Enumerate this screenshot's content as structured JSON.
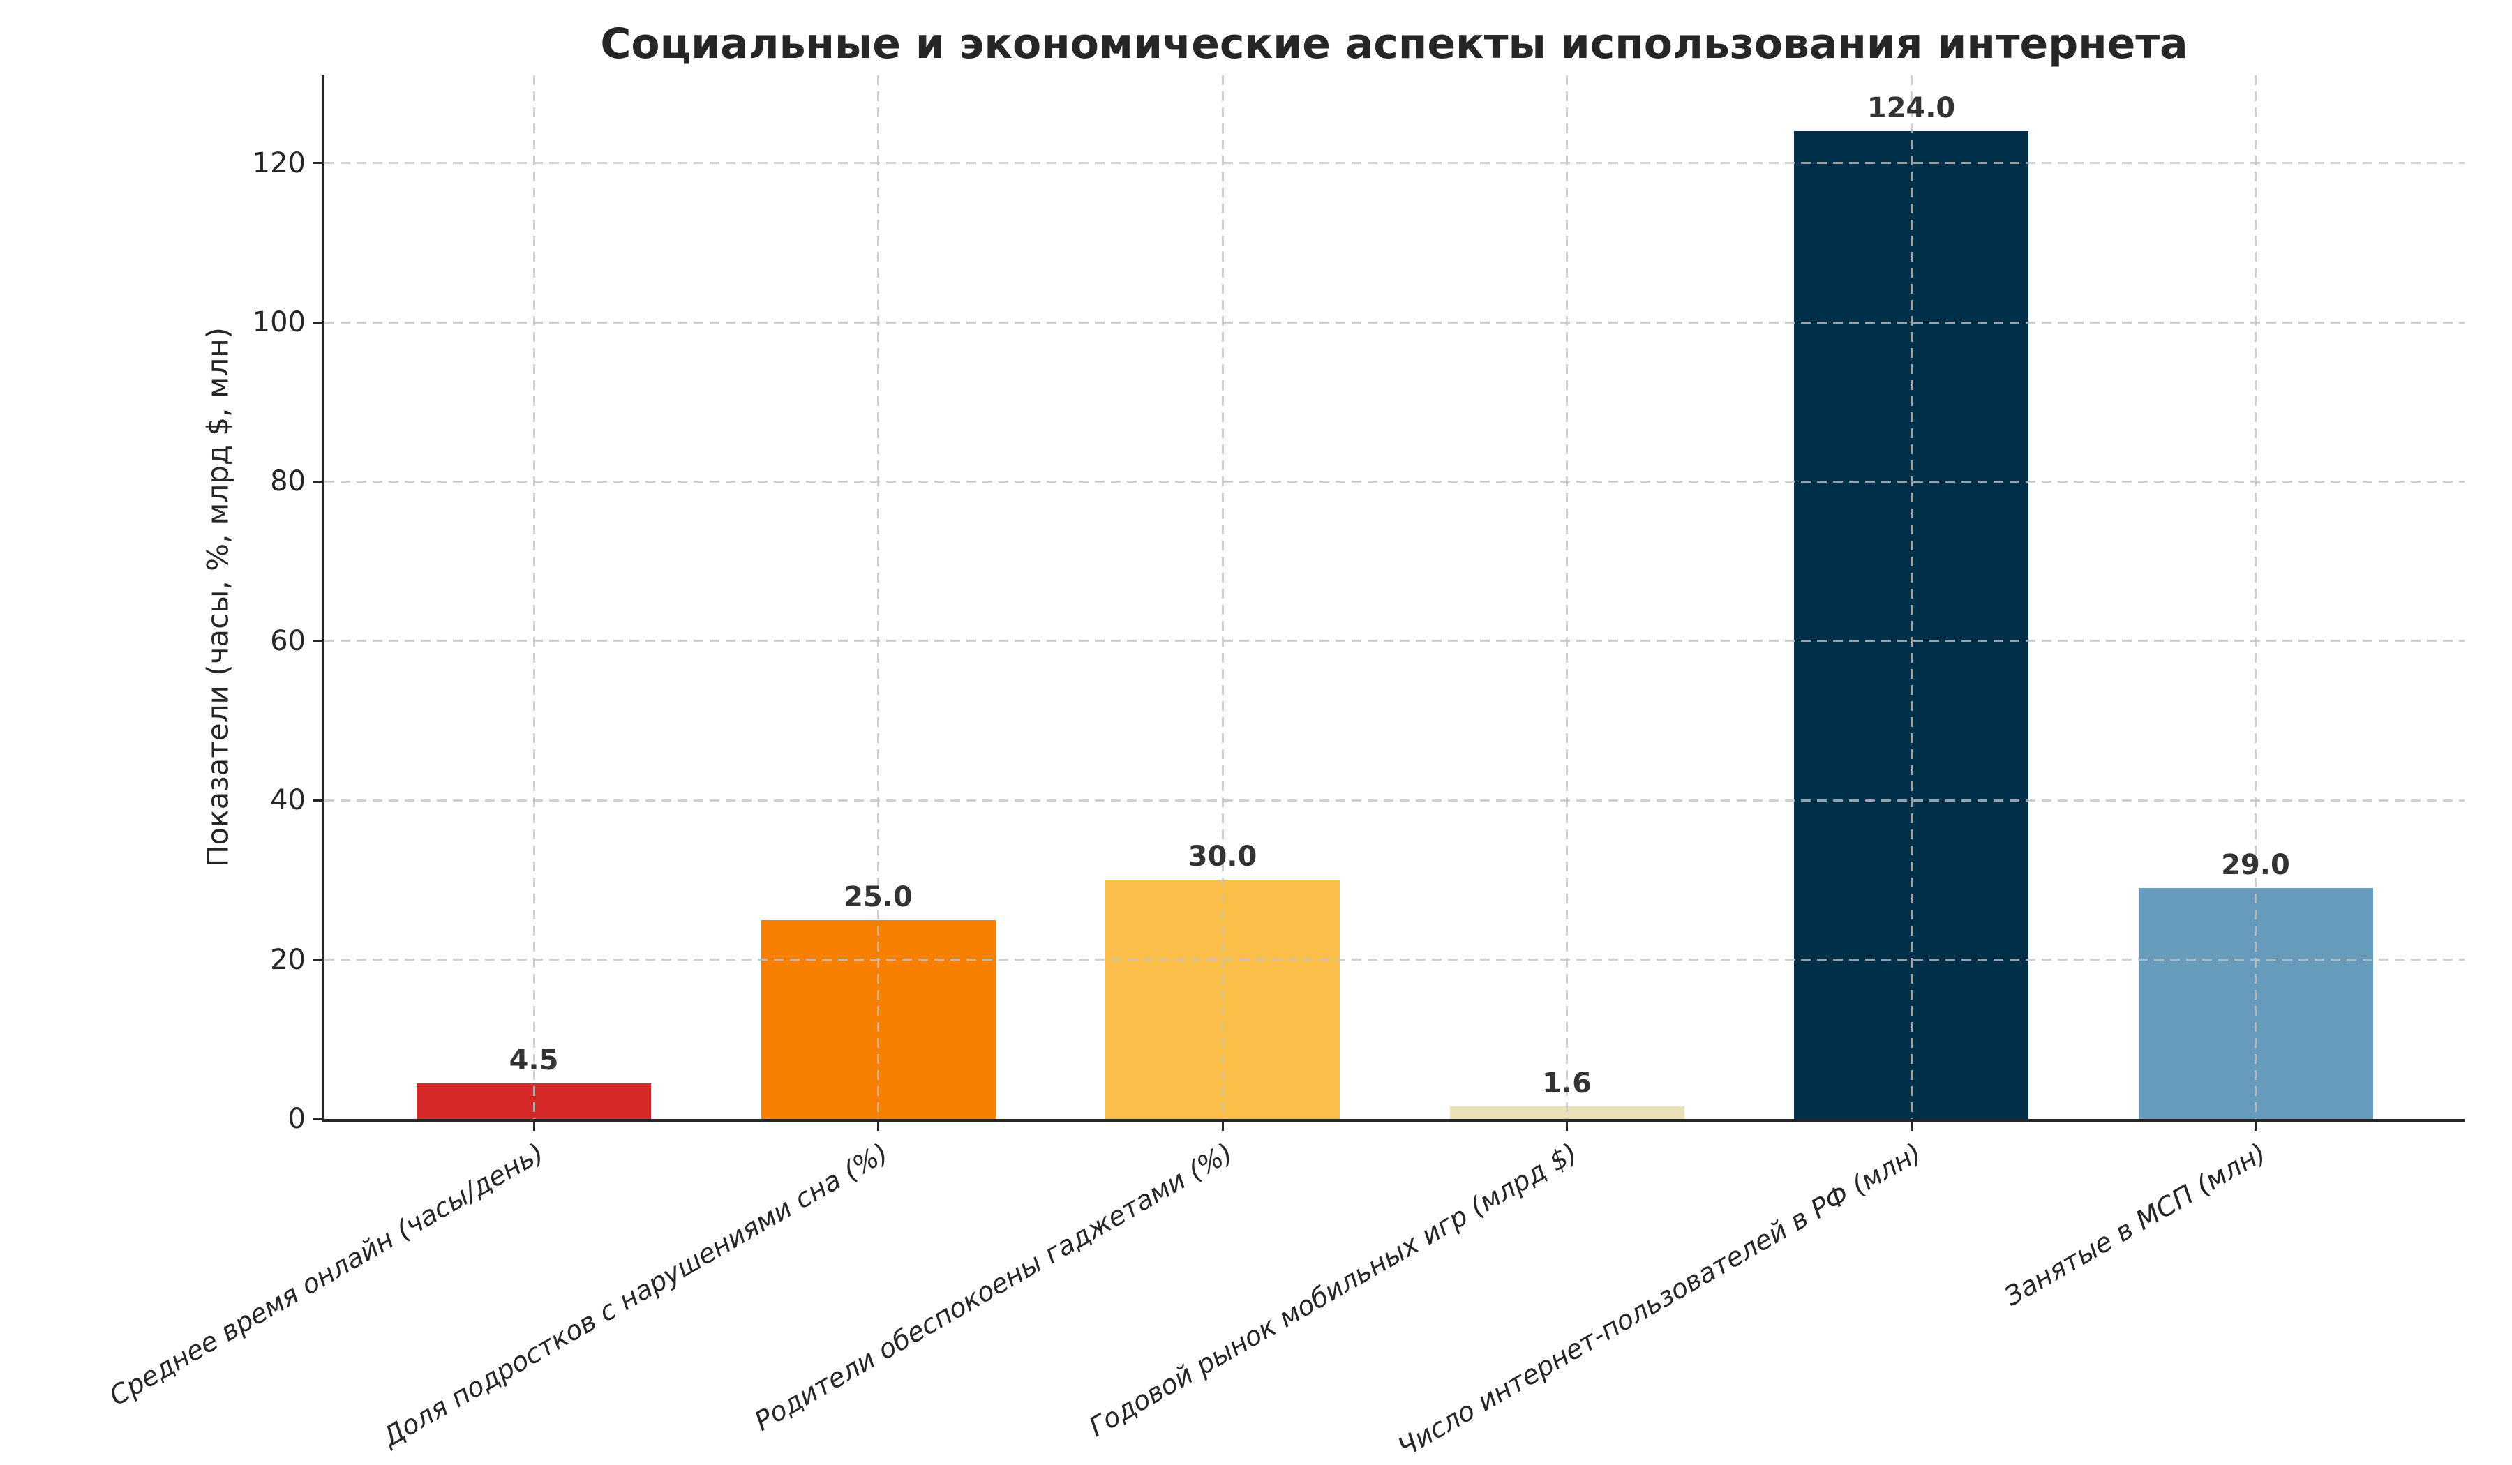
{
  "chart_data": {
    "type": "bar",
    "title": "Социальные и экономические аспекты использования интернета",
    "ylabel": "Показатели (часы, %, млрд $, млн)",
    "xlabel": "",
    "categories": [
      "Среднее время онлайн (часы/день)",
      "Доля подростков с нарушениями сна (%)",
      "Родители обеспокоены гаджетами (%)",
      "Годовой рынок мобильных игр (млрд $)",
      "Число интернет-пользователей в РФ (млн)",
      "Занятые в МСП (млн)"
    ],
    "values": [
      4.5,
      25.0,
      30.0,
      1.6,
      124.0,
      29.0
    ],
    "bar_labels": [
      "4.5",
      "25.0",
      "30.0",
      "1.6",
      "124.0",
      "29.0"
    ],
    "bar_colors": [
      "#d62828",
      "#f77f00",
      "#fcbf49",
      "#eae2b7",
      "#003049",
      "#669bbc"
    ],
    "ytick_labels": [
      "0",
      "20",
      "40",
      "60",
      "80",
      "100",
      "120"
    ],
    "yticks": [
      0,
      20,
      40,
      60,
      80,
      100,
      120
    ],
    "ylim": [
      0,
      131
    ],
    "grid": "dashed, horizontal and vertical, drawn over bars",
    "legend": "none",
    "xtick_label_style": "italic, rotated 30deg, right-aligned",
    "colors": {
      "axis": "#262626",
      "title_text": "#262626",
      "value_label_text": "#333333",
      "gridline": "#c3c3c3",
      "background": "#ffffff"
    }
  }
}
